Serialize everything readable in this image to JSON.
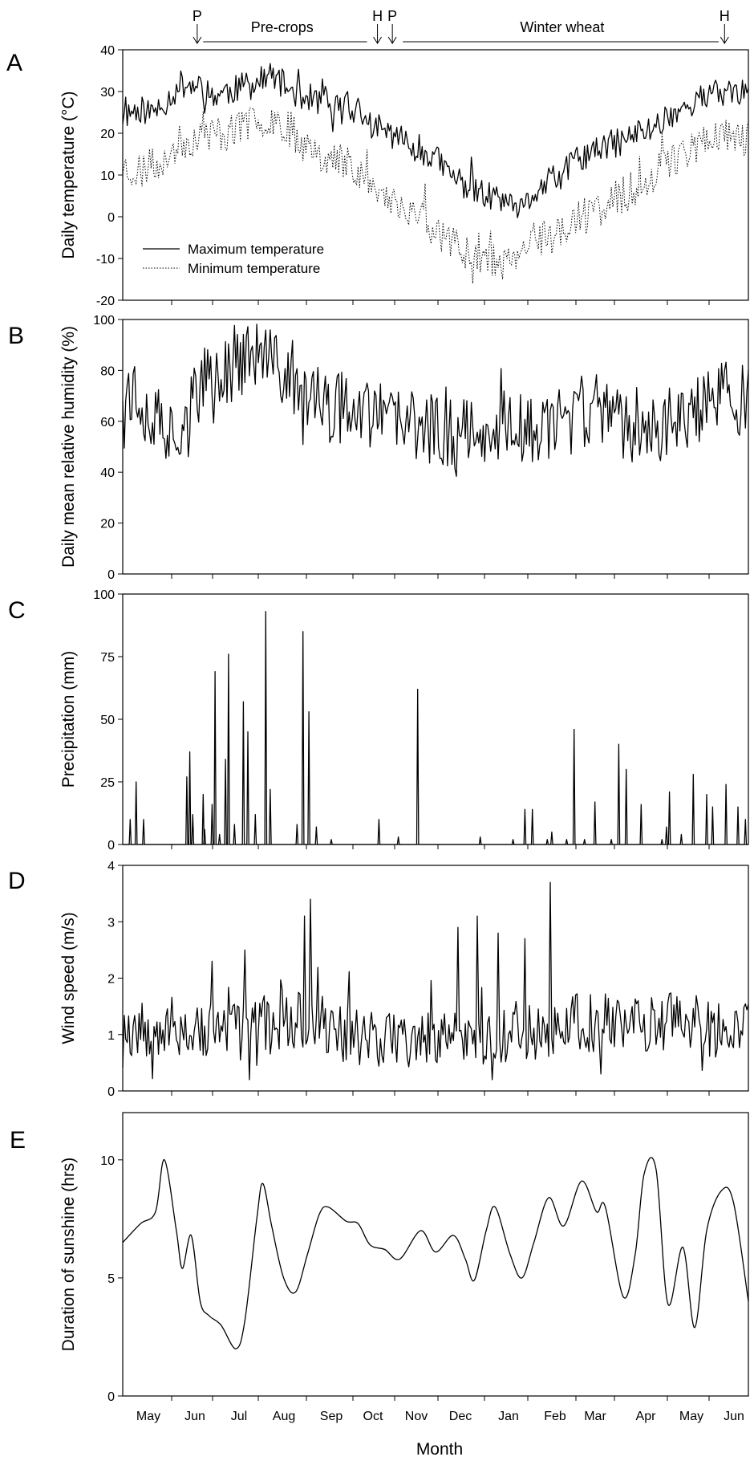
{
  "chart_data": [
    {
      "panel": "A",
      "type": "line",
      "ylabel": "Daily temperature (°C)",
      "ylim": [
        -20,
        40
      ],
      "yticks": [
        -20,
        -10,
        0,
        10,
        20,
        30,
        40
      ],
      "x_range_days": [
        0,
        420
      ],
      "legend": "bottom-left",
      "series": [
        {
          "name": "Maximum temperature",
          "style": "solid",
          "anchors": [
            [
              0,
              24
            ],
            [
              10,
              26
            ],
            [
              20,
              25
            ],
            [
              30,
              28
            ],
            [
              40,
              32
            ],
            [
              50,
              31
            ],
            [
              60,
              29
            ],
            [
              70,
              30
            ],
            [
              80,
              31
            ],
            [
              90,
              32
            ],
            [
              100,
              34
            ],
            [
              110,
              31
            ],
            [
              120,
              29
            ],
            [
              130,
              28
            ],
            [
              140,
              26
            ],
            [
              150,
              27
            ],
            [
              160,
              24
            ],
            [
              170,
              21
            ],
            [
              180,
              20
            ],
            [
              190,
              18
            ],
            [
              200,
              16
            ],
            [
              210,
              14
            ],
            [
              220,
              10
            ],
            [
              230,
              8
            ],
            [
              240,
              6
            ],
            [
              250,
              4
            ],
            [
              260,
              2
            ],
            [
              265,
              0
            ],
            [
              275,
              5
            ],
            [
              285,
              8
            ],
            [
              295,
              10
            ],
            [
              305,
              14
            ],
            [
              315,
              15
            ],
            [
              325,
              17
            ],
            [
              335,
              18
            ],
            [
              345,
              20
            ],
            [
              355,
              21
            ],
            [
              365,
              24
            ],
            [
              375,
              26
            ],
            [
              385,
              28
            ],
            [
              395,
              29
            ],
            [
              405,
              30
            ],
            [
              420,
              30
            ]
          ],
          "seed": 11,
          "amp": 3.5,
          "ymin": -5,
          "ymax": 37
        },
        {
          "name": "Minimum temperature",
          "style": "dotted",
          "anchors": [
            [
              0,
              12
            ],
            [
              10,
              11
            ],
            [
              20,
              12
            ],
            [
              30,
              15
            ],
            [
              40,
              18
            ],
            [
              50,
              19
            ],
            [
              60,
              20
            ],
            [
              70,
              20
            ],
            [
              80,
              22
            ],
            [
              90,
              23
            ],
            [
              100,
              24
            ],
            [
              110,
              22
            ],
            [
              120,
              18
            ],
            [
              130,
              16
            ],
            [
              140,
              14
            ],
            [
              150,
              13
            ],
            [
              160,
              11
            ],
            [
              170,
              6
            ],
            [
              180,
              4
            ],
            [
              190,
              2
            ],
            [
              200,
              0
            ],
            [
              210,
              -3
            ],
            [
              220,
              -6
            ],
            [
              230,
              -8
            ],
            [
              240,
              -9
            ],
            [
              250,
              -10
            ],
            [
              260,
              -12
            ],
            [
              270,
              -8
            ],
            [
              280,
              -6
            ],
            [
              290,
              -4
            ],
            [
              300,
              -2
            ],
            [
              310,
              0
            ],
            [
              320,
              2
            ],
            [
              330,
              4
            ],
            [
              340,
              6
            ],
            [
              350,
              8
            ],
            [
              360,
              12
            ],
            [
              370,
              14
            ],
            [
              380,
              16
            ],
            [
              390,
              18
            ],
            [
              400,
              20
            ],
            [
              410,
              19
            ],
            [
              420,
              19
            ]
          ],
          "seed": 23,
          "amp": 4.5,
          "ymin": -16,
          "ymax": 26
        }
      ],
      "annotations": [
        {
          "text": "P",
          "day": 50
        },
        {
          "text": "Pre-crops",
          "day": 107,
          "span": [
            54,
            164
          ]
        },
        {
          "text": "H",
          "day": 171
        },
        {
          "text": "P",
          "day": 181
        },
        {
          "text": "Winter wheat",
          "day": 295,
          "span": [
            188,
            400
          ]
        },
        {
          "text": "H",
          "day": 404
        }
      ]
    },
    {
      "panel": "B",
      "type": "line",
      "ylabel": "Daily mean relative humidity (%)",
      "ylim": [
        0,
        100
      ],
      "yticks": [
        0,
        20,
        40,
        60,
        80,
        100
      ],
      "x_range_days": [
        0,
        420
      ],
      "series": [
        {
          "anchors": [
            [
              0,
              75
            ],
            [
              10,
              70
            ],
            [
              20,
              62
            ],
            [
              30,
              55
            ],
            [
              40,
              60
            ],
            [
              50,
              72
            ],
            [
              60,
              78
            ],
            [
              70,
              80
            ],
            [
              80,
              84
            ],
            [
              90,
              86
            ],
            [
              100,
              82
            ],
            [
              110,
              78
            ],
            [
              120,
              72
            ],
            [
              130,
              68
            ],
            [
              140,
              64
            ],
            [
              150,
              68
            ],
            [
              160,
              66
            ],
            [
              170,
              62
            ],
            [
              180,
              60
            ],
            [
              200,
              58
            ],
            [
              220,
              56
            ],
            [
              240,
              60
            ],
            [
              260,
              58
            ],
            [
              280,
              56
            ],
            [
              300,
              60
            ],
            [
              320,
              62
            ],
            [
              340,
              58
            ],
            [
              360,
              56
            ],
            [
              380,
              62
            ],
            [
              400,
              70
            ],
            [
              420,
              68
            ]
          ],
          "seed": 37,
          "amp": 14,
          "ymin": 20,
          "ymax": 99
        }
      ]
    },
    {
      "panel": "C",
      "type": "bar",
      "ylabel": "Precipitation (mm)",
      "ylim": [
        0,
        100
      ],
      "yticks": [
        0,
        25,
        50,
        75,
        100
      ],
      "x_range_days": [
        0,
        420
      ],
      "events": [
        [
          5,
          10
        ],
        [
          9,
          25
        ],
        [
          14,
          10
        ],
        [
          43,
          27
        ],
        [
          45,
          37
        ],
        [
          47,
          12
        ],
        [
          54,
          20
        ],
        [
          55,
          6
        ],
        [
          60,
          16
        ],
        [
          62,
          69
        ],
        [
          65,
          4
        ],
        [
          69,
          34
        ],
        [
          71,
          76
        ],
        [
          75,
          8
        ],
        [
          81,
          57
        ],
        [
          84,
          45
        ],
        [
          89,
          12
        ],
        [
          96,
          93
        ],
        [
          99,
          22
        ],
        [
          117,
          8
        ],
        [
          121,
          85
        ],
        [
          125,
          53
        ],
        [
          130,
          7
        ],
        [
          140,
          2
        ],
        [
          172,
          10
        ],
        [
          185,
          3
        ],
        [
          198,
          62
        ],
        [
          240,
          3
        ],
        [
          262,
          2
        ],
        [
          270,
          14
        ],
        [
          275,
          14
        ],
        [
          285,
          2
        ],
        [
          288,
          5
        ],
        [
          298,
          2
        ],
        [
          303,
          46
        ],
        [
          310,
          2
        ],
        [
          317,
          17
        ],
        [
          328,
          2
        ],
        [
          333,
          40
        ],
        [
          338,
          30
        ],
        [
          348,
          16
        ],
        [
          362,
          2
        ],
        [
          365,
          7
        ],
        [
          367,
          21
        ],
        [
          375,
          4
        ],
        [
          383,
          28
        ],
        [
          392,
          20
        ],
        [
          396,
          15
        ],
        [
          405,
          24
        ],
        [
          413,
          15
        ],
        [
          418,
          10
        ]
      ]
    },
    {
      "panel": "D",
      "type": "line",
      "ylabel": "Wind speed (m/s)",
      "ylim": [
        0,
        4
      ],
      "yticks": [
        0,
        1,
        2,
        3,
        4
      ],
      "x_range_days": [
        0,
        420
      ],
      "series": [
        {
          "anchors": [
            [
              0,
              1.2
            ],
            [
              40,
              1.1
            ],
            [
              80,
              1.0
            ],
            [
              100,
              1.2
            ],
            [
              120,
              1.3
            ],
            [
              160,
              1.0
            ],
            [
              200,
              0.9
            ],
            [
              240,
              1.0
            ],
            [
              280,
              1.1
            ],
            [
              300,
              1.2
            ],
            [
              340,
              1.2
            ],
            [
              380,
              1.2
            ],
            [
              420,
              1.0
            ]
          ],
          "seed": 53,
          "amp": 0.55,
          "ymin": 0.2,
          "ymax": 2.6,
          "peaks": [
            [
              122,
              3.1
            ],
            [
              126,
              3.4
            ],
            [
              225,
              2.9
            ],
            [
              238,
              3.1
            ],
            [
              252,
              2.8
            ],
            [
              270,
              2.7
            ],
            [
              287,
              3.7
            ],
            [
              82,
              2.5
            ],
            [
              60,
              2.3
            ]
          ]
        }
      ]
    },
    {
      "panel": "E",
      "type": "line",
      "ylabel": "Duration of sunshine (hrs)",
      "xlabel": "Month",
      "ylim": [
        0,
        12
      ],
      "yticks": [
        0,
        5,
        10
      ],
      "x_range_days": [
        0,
        420
      ],
      "series": [
        {
          "anchors": [
            [
              0,
              6.5
            ],
            [
              12,
              7.3
            ],
            [
              22,
              7.8
            ],
            [
              28,
              10.0
            ],
            [
              36,
              7.0
            ],
            [
              40,
              5.4
            ],
            [
              46,
              6.8
            ],
            [
              52,
              4.0
            ],
            [
              58,
              3.4
            ],
            [
              66,
              3.0
            ],
            [
              76,
              2.0
            ],
            [
              82,
              3.2
            ],
            [
              90,
              7.5
            ],
            [
              94,
              9.0
            ],
            [
              100,
              7.2
            ],
            [
              108,
              5.0
            ],
            [
              116,
              4.4
            ],
            [
              124,
              6.0
            ],
            [
              132,
              7.7
            ],
            [
              138,
              8.0
            ],
            [
              150,
              7.4
            ],
            [
              158,
              7.3
            ],
            [
              166,
              6.4
            ],
            [
              176,
              6.2
            ],
            [
              186,
              5.8
            ],
            [
              200,
              7.0
            ],
            [
              210,
              6.1
            ],
            [
              222,
              6.8
            ],
            [
              230,
              5.8
            ],
            [
              236,
              4.9
            ],
            [
              244,
              7.0
            ],
            [
              250,
              8.0
            ],
            [
              260,
              6.0
            ],
            [
              268,
              5.0
            ],
            [
              276,
              6.5
            ],
            [
              286,
              8.4
            ],
            [
              296,
              7.2
            ],
            [
              308,
              9.1
            ],
            [
              318,
              7.8
            ],
            [
              324,
              8.0
            ],
            [
              336,
              4.2
            ],
            [
              344,
              6.0
            ],
            [
              350,
              9.4
            ],
            [
              358,
              9.6
            ],
            [
              366,
              3.9
            ],
            [
              376,
              6.3
            ],
            [
              384,
              2.9
            ],
            [
              392,
              7.0
            ],
            [
              402,
              8.7
            ],
            [
              410,
              8.2
            ],
            [
              420,
              4.0
            ]
          ]
        }
      ],
      "x_month_ticks": [
        "May",
        "Jun",
        "Jul",
        "Aug",
        "Sep",
        "Oct",
        "Nov",
        "Dec",
        "Jan",
        "Feb",
        "Mar",
        "Apr",
        "May",
        "Jun"
      ]
    }
  ],
  "panel_labels": [
    "A",
    "B",
    "C",
    "D",
    "E"
  ]
}
